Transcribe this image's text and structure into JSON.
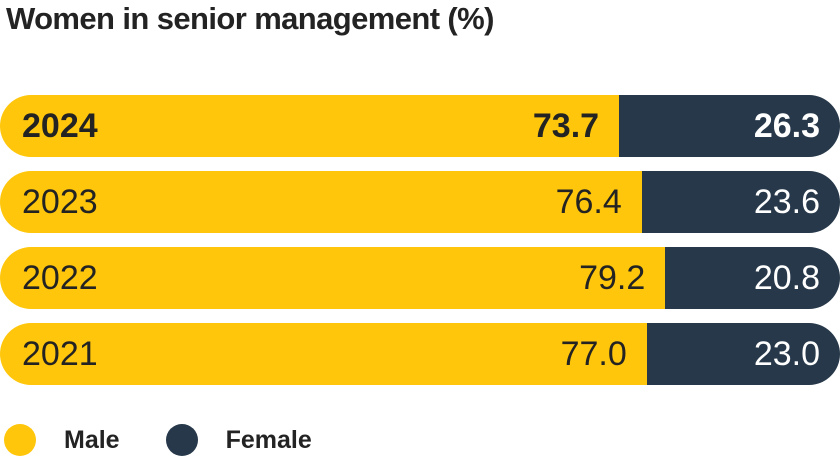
{
  "title": "Women in senior management (%)",
  "colors": {
    "male": "#FFC60B",
    "female": "#263849",
    "text_dark": "#232323",
    "text_light": "#FFFFFF",
    "background": "#FFFFFF"
  },
  "legend": {
    "male_label": "Male",
    "female_label": "Female"
  },
  "chart_data": {
    "type": "bar",
    "orientation": "horizontal-stacked",
    "unit": "%",
    "title": "Women in senior management (%)",
    "categories": [
      "2024",
      "2023",
      "2022",
      "2021"
    ],
    "series": [
      {
        "name": "Male",
        "color": "#FFC60B",
        "values": [
          73.7,
          76.4,
          79.2,
          77.0
        ]
      },
      {
        "name": "Female",
        "color": "#263849",
        "values": [
          26.3,
          23.6,
          20.8,
          23.0
        ]
      }
    ],
    "rows": [
      {
        "year": "2024",
        "male": "73.7",
        "female": "26.3"
      },
      {
        "year": "2023",
        "male": "76.4",
        "female": "23.6"
      },
      {
        "year": "2022",
        "male": "79.2",
        "female": "20.8"
      },
      {
        "year": "2021",
        "male": "77.0",
        "female": "23.0"
      }
    ],
    "xlim": [
      0,
      100
    ],
    "highlighted_category": "2024",
    "legend_position": "bottom-left",
    "grid": false,
    "axes_shown": false
  }
}
